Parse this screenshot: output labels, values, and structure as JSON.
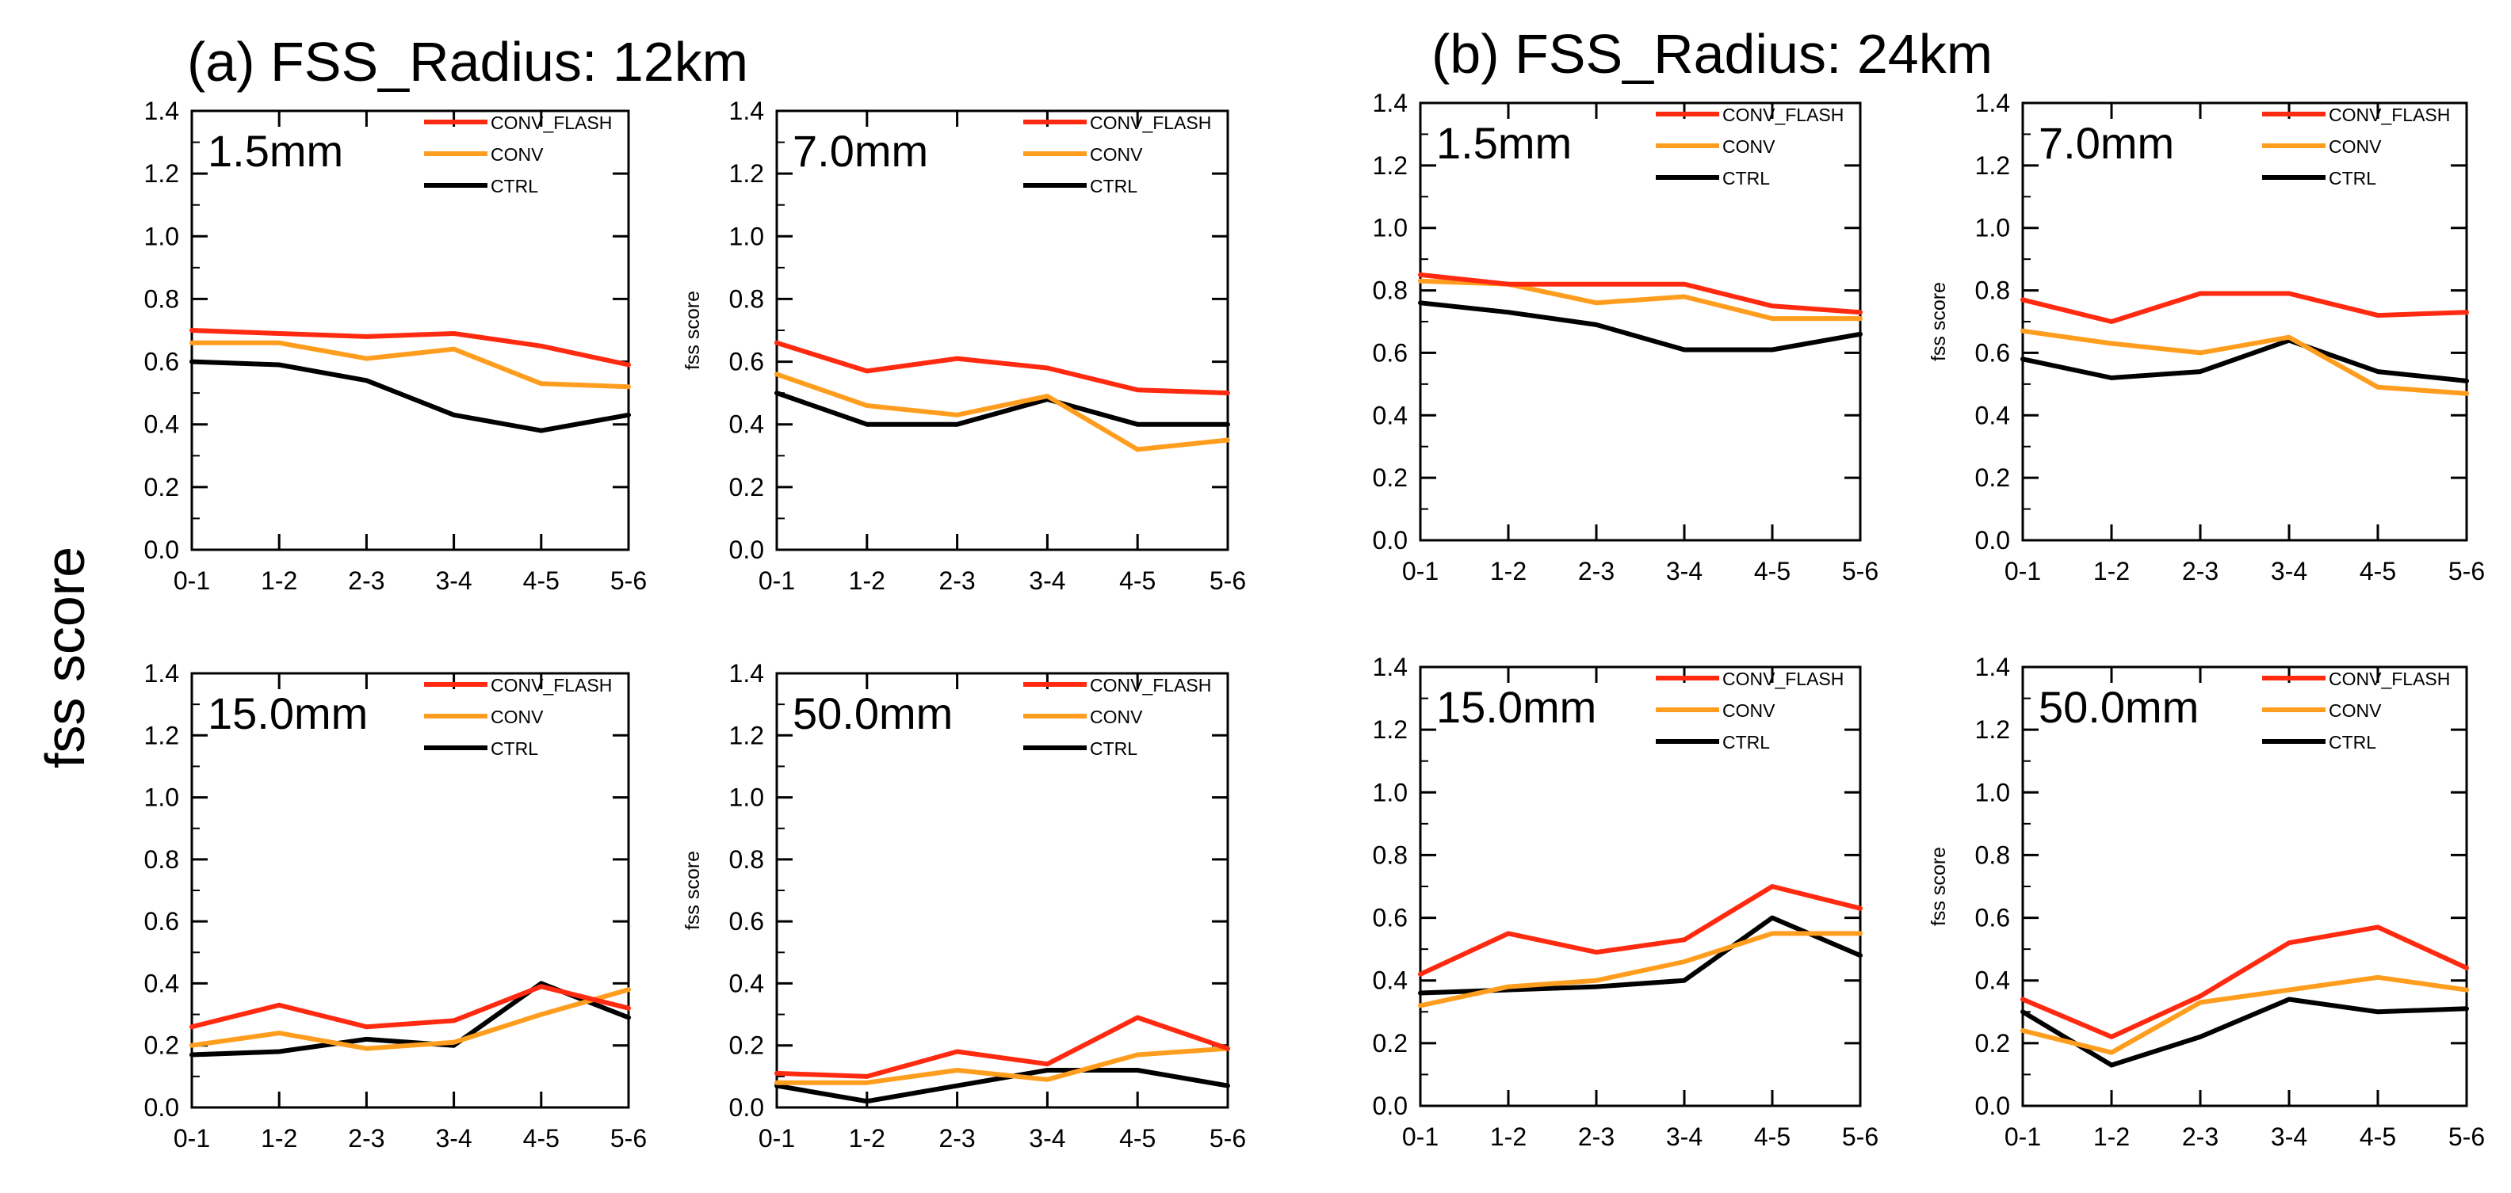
{
  "figure": {
    "ylabel": "fss score",
    "groups": [
      {
        "title": "(a) FSS_Radius: 12km"
      },
      {
        "title": "(b) FSS_Radius: 24km"
      }
    ]
  },
  "colors": {
    "CONV_FLASH": "#ff2a10",
    "CONV": "#ff9d1e",
    "CTRL": "#000000"
  },
  "chart_data": [
    {
      "type": "line",
      "group": "(a) FSS_Radius: 12km",
      "label": "1.5mm",
      "ylabel": "",
      "categories": [
        "0-1",
        "1-2",
        "2-3",
        "3-4",
        "4-5",
        "5-6"
      ],
      "yticks": [
        "0.0",
        "0.2",
        "0.4",
        "0.6",
        "0.8",
        "1.0",
        "1.2",
        "1.4"
      ],
      "ylim": [
        0,
        1.4
      ],
      "legend": "top-right",
      "series": [
        {
          "name": "CONV_FLASH",
          "values": [
            0.7,
            0.69,
            0.68,
            0.69,
            0.65,
            0.59
          ]
        },
        {
          "name": "CONV",
          "values": [
            0.66,
            0.66,
            0.61,
            0.64,
            0.53,
            0.52
          ]
        },
        {
          "name": "CTRL",
          "values": [
            0.6,
            0.59,
            0.54,
            0.43,
            0.38,
            0.43
          ]
        }
      ]
    },
    {
      "type": "line",
      "group": "(a) FSS_Radius: 12km",
      "label": "7.0mm",
      "ylabel": "fss score",
      "categories": [
        "0-1",
        "1-2",
        "2-3",
        "3-4",
        "4-5",
        "5-6"
      ],
      "yticks": [
        "0.0",
        "0.2",
        "0.4",
        "0.6",
        "0.8",
        "1.0",
        "1.2",
        "1.4"
      ],
      "ylim": [
        0,
        1.4
      ],
      "legend": "top-right",
      "series": [
        {
          "name": "CONV_FLASH",
          "values": [
            0.66,
            0.57,
            0.61,
            0.58,
            0.51,
            0.5
          ]
        },
        {
          "name": "CONV",
          "values": [
            0.56,
            0.46,
            0.43,
            0.49,
            0.32,
            0.35
          ]
        },
        {
          "name": "CTRL",
          "values": [
            0.5,
            0.4,
            0.4,
            0.48,
            0.4,
            0.4
          ]
        }
      ]
    },
    {
      "type": "line",
      "group": "(a) FSS_Radius: 12km",
      "label": "15.0mm",
      "ylabel": "",
      "categories": [
        "0-1",
        "1-2",
        "2-3",
        "3-4",
        "4-5",
        "5-6"
      ],
      "yticks": [
        "0.0",
        "0.2",
        "0.4",
        "0.6",
        "0.8",
        "1.0",
        "1.2",
        "1.4"
      ],
      "ylim": [
        0,
        1.4
      ],
      "legend": "top-right",
      "series": [
        {
          "name": "CONV_FLASH",
          "values": [
            0.26,
            0.33,
            0.26,
            0.28,
            0.39,
            0.32
          ]
        },
        {
          "name": "CONV",
          "values": [
            0.2,
            0.24,
            0.19,
            0.21,
            0.3,
            0.38
          ]
        },
        {
          "name": "CTRL",
          "values": [
            0.17,
            0.18,
            0.22,
            0.2,
            0.4,
            0.29
          ]
        }
      ]
    },
    {
      "type": "line",
      "group": "(a) FSS_Radius: 12km",
      "label": "50.0mm",
      "ylabel": "fss score",
      "categories": [
        "0-1",
        "1-2",
        "2-3",
        "3-4",
        "4-5",
        "5-6"
      ],
      "yticks": [
        "0.0",
        "0.2",
        "0.4",
        "0.6",
        "0.8",
        "1.0",
        "1.2",
        "1.4"
      ],
      "ylim": [
        0,
        1.4
      ],
      "legend": "top-right",
      "series": [
        {
          "name": "CONV_FLASH",
          "values": [
            0.11,
            0.1,
            0.18,
            0.14,
            0.29,
            0.19
          ]
        },
        {
          "name": "CONV",
          "values": [
            0.08,
            0.08,
            0.12,
            0.09,
            0.17,
            0.19
          ]
        },
        {
          "name": "CTRL",
          "values": [
            0.07,
            0.02,
            0.07,
            0.12,
            0.12,
            0.07
          ]
        }
      ]
    },
    {
      "type": "line",
      "group": "(b) FSS_Radius: 24km",
      "label": "1.5mm",
      "ylabel": "",
      "categories": [
        "0-1",
        "1-2",
        "2-3",
        "3-4",
        "4-5",
        "5-6"
      ],
      "yticks": [
        "0.0",
        "0.2",
        "0.4",
        "0.6",
        "0.8",
        "1.0",
        "1.2",
        "1.4"
      ],
      "ylim": [
        0,
        1.4
      ],
      "legend": "top-right",
      "series": [
        {
          "name": "CONV_FLASH",
          "values": [
            0.85,
            0.82,
            0.82,
            0.82,
            0.75,
            0.73
          ]
        },
        {
          "name": "CONV",
          "values": [
            0.83,
            0.82,
            0.76,
            0.78,
            0.71,
            0.71
          ]
        },
        {
          "name": "CTRL",
          "values": [
            0.76,
            0.73,
            0.69,
            0.61,
            0.61,
            0.66
          ]
        }
      ]
    },
    {
      "type": "line",
      "group": "(b) FSS_Radius: 24km",
      "label": "7.0mm",
      "ylabel": "fss score",
      "categories": [
        "0-1",
        "1-2",
        "2-3",
        "3-4",
        "4-5",
        "5-6"
      ],
      "yticks": [
        "0.0",
        "0.2",
        "0.4",
        "0.6",
        "0.8",
        "1.0",
        "1.2",
        "1.4"
      ],
      "ylim": [
        0,
        1.4
      ],
      "legend": "top-right",
      "series": [
        {
          "name": "CONV_FLASH",
          "values": [
            0.77,
            0.7,
            0.79,
            0.79,
            0.72,
            0.73
          ]
        },
        {
          "name": "CONV",
          "values": [
            0.67,
            0.63,
            0.6,
            0.65,
            0.49,
            0.47
          ]
        },
        {
          "name": "CTRL",
          "values": [
            0.58,
            0.52,
            0.54,
            0.64,
            0.54,
            0.51
          ]
        }
      ]
    },
    {
      "type": "line",
      "group": "(b) FSS_Radius: 24km",
      "label": "15.0mm",
      "ylabel": "",
      "categories": [
        "0-1",
        "1-2",
        "2-3",
        "3-4",
        "4-5",
        "5-6"
      ],
      "yticks": [
        "0.0",
        "0.2",
        "0.4",
        "0.6",
        "0.8",
        "1.0",
        "1.2",
        "1.4"
      ],
      "ylim": [
        0,
        1.4
      ],
      "legend": "top-right",
      "series": [
        {
          "name": "CONV_FLASH",
          "values": [
            0.42,
            0.55,
            0.49,
            0.53,
            0.7,
            0.63
          ]
        },
        {
          "name": "CONV",
          "values": [
            0.32,
            0.38,
            0.4,
            0.46,
            0.55,
            0.55
          ]
        },
        {
          "name": "CTRL",
          "values": [
            0.36,
            0.37,
            0.38,
            0.4,
            0.6,
            0.48
          ]
        }
      ]
    },
    {
      "type": "line",
      "group": "(b) FSS_Radius: 24km",
      "label": "50.0mm",
      "ylabel": "fss score",
      "categories": [
        "0-1",
        "1-2",
        "2-3",
        "3-4",
        "4-5",
        "5-6"
      ],
      "yticks": [
        "0.0",
        "0.2",
        "0.4",
        "0.6",
        "0.8",
        "1.0",
        "1.2",
        "1.4"
      ],
      "ylim": [
        0,
        1.4
      ],
      "legend": "top-right",
      "series": [
        {
          "name": "CONV_FLASH",
          "values": [
            0.34,
            0.22,
            0.35,
            0.52,
            0.57,
            0.44
          ]
        },
        {
          "name": "CONV",
          "values": [
            0.24,
            0.17,
            0.33,
            0.37,
            0.41,
            0.37
          ]
        },
        {
          "name": "CTRL",
          "values": [
            0.3,
            0.13,
            0.22,
            0.34,
            0.3,
            0.31
          ]
        }
      ]
    }
  ]
}
